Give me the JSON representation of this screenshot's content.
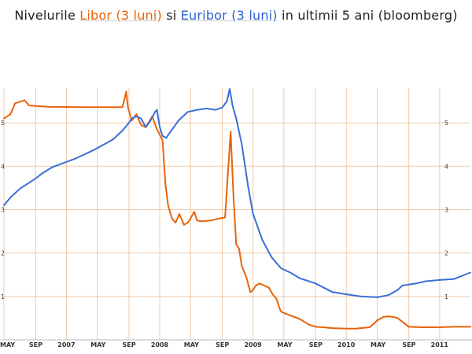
{
  "title": {
    "prefix": "Nivelurile ",
    "series1": "Libor (3 luni)",
    "middle": " si ",
    "series2": "Euribor (3 luni)",
    "suffix": " in ultimii 5 ani (bloomberg)"
  },
  "colors": {
    "libor": "#e8630a",
    "euribor": "#3a6fd8",
    "grid": "#efc9a9",
    "axis": "#bbbbbb"
  },
  "chart_data": {
    "type": "line",
    "title": "Nivelurile Libor (3 luni) si Euribor (3 luni) in ultimii 5 ani (bloomberg)",
    "xlabel": "",
    "ylabel": "",
    "xlim": [
      2006.33,
      2011.33
    ],
    "ylim": [
      0,
      5.8
    ],
    "y_ticks": [
      "1",
      "2",
      "3",
      "4",
      "5"
    ],
    "x_ticks": [
      {
        "label": "MAY",
        "x": 2006.33
      },
      {
        "label": "SEP",
        "x": 2006.67
      },
      {
        "label": "2007",
        "x": 2007.0
      },
      {
        "label": "MAY",
        "x": 2007.33
      },
      {
        "label": "SEP",
        "x": 2007.67
      },
      {
        "label": "2008",
        "x": 2008.0
      },
      {
        "label": "MAY",
        "x": 2008.33
      },
      {
        "label": "SEP",
        "x": 2008.67
      },
      {
        "label": "2009",
        "x": 2009.0
      },
      {
        "label": "MAY",
        "x": 2009.33
      },
      {
        "label": "SEP",
        "x": 2009.67
      },
      {
        "label": "2010",
        "x": 2010.0
      },
      {
        "label": "MAY",
        "x": 2010.33
      },
      {
        "label": "SEP",
        "x": 2010.67
      },
      {
        "label": "2011",
        "x": 2011.0
      }
    ],
    "grid": true,
    "series": [
      {
        "name": "Libor (3 luni)",
        "x": [
          2006.33,
          2006.4,
          2006.45,
          2006.55,
          2006.6,
          2006.8,
          2007.2,
          2007.6,
          2007.62,
          2007.64,
          2007.66,
          2007.7,
          2007.75,
          2007.8,
          2007.85,
          2007.92,
          2007.97,
          2008.03,
          2008.06,
          2008.09,
          2008.13,
          2008.17,
          2008.21,
          2008.26,
          2008.3,
          2008.33,
          2008.37,
          2008.4,
          2008.45,
          2008.55,
          2008.65,
          2008.7,
          2008.73,
          2008.76,
          2008.79,
          2008.82,
          2008.85,
          2008.88,
          2008.93,
          2008.97,
          2009.0,
          2009.03,
          2009.07,
          2009.12,
          2009.17,
          2009.21,
          2009.25,
          2009.28,
          2009.3,
          2009.33,
          2009.4,
          2009.5,
          2009.6,
          2009.67,
          2009.75,
          2009.85,
          2010.0,
          2010.1,
          2010.25,
          2010.3,
          2010.33,
          2010.4,
          2010.45,
          2010.5,
          2010.55,
          2010.58,
          2010.67,
          2010.8,
          2011.0,
          2011.15,
          2011.33
        ],
        "values": [
          5.1,
          5.2,
          5.45,
          5.52,
          5.4,
          5.37,
          5.36,
          5.36,
          5.52,
          5.72,
          5.35,
          5.05,
          5.2,
          4.95,
          4.9,
          5.15,
          4.85,
          4.6,
          3.6,
          3.1,
          2.8,
          2.7,
          2.9,
          2.65,
          2.7,
          2.8,
          2.95,
          2.75,
          2.73,
          2.75,
          2.8,
          2.82,
          3.8,
          4.8,
          3.3,
          2.2,
          2.1,
          1.7,
          1.43,
          1.1,
          1.15,
          1.25,
          1.3,
          1.25,
          1.2,
          1.05,
          0.95,
          0.75,
          0.65,
          0.62,
          0.56,
          0.48,
          0.35,
          0.3,
          0.29,
          0.27,
          0.26,
          0.26,
          0.29,
          0.38,
          0.45,
          0.53,
          0.54,
          0.53,
          0.5,
          0.45,
          0.3,
          0.29,
          0.29,
          0.3,
          0.3
        ]
      },
      {
        "name": "Euribor (3 luni)",
        "x": [
          2006.33,
          2006.4,
          2006.5,
          2006.6,
          2006.67,
          2006.75,
          2006.85,
          2007.0,
          2007.1,
          2007.2,
          2007.3,
          2007.4,
          2007.5,
          2007.55,
          2007.6,
          2007.65,
          2007.67,
          2007.7,
          2007.75,
          2007.8,
          2007.85,
          2007.9,
          2007.95,
          2007.97,
          2008.0,
          2008.03,
          2008.07,
          2008.1,
          2008.15,
          2008.2,
          2008.3,
          2008.4,
          2008.5,
          2008.6,
          2008.67,
          2008.72,
          2008.75,
          2008.78,
          2008.82,
          2008.88,
          2008.95,
          2009.0,
          2009.05,
          2009.1,
          2009.2,
          2009.3,
          2009.4,
          2009.5,
          2009.67,
          2009.85,
          2010.0,
          2010.15,
          2010.33,
          2010.45,
          2010.55,
          2010.6,
          2010.75,
          2010.85,
          2011.0,
          2011.15,
          2011.33
        ],
        "values": [
          3.1,
          3.28,
          3.48,
          3.62,
          3.72,
          3.85,
          3.98,
          4.1,
          4.18,
          4.28,
          4.38,
          4.5,
          4.62,
          4.72,
          4.82,
          4.95,
          5.0,
          5.1,
          5.15,
          5.1,
          4.9,
          5.05,
          5.25,
          5.3,
          4.9,
          4.7,
          4.65,
          4.75,
          4.9,
          5.05,
          5.25,
          5.3,
          5.33,
          5.3,
          5.35,
          5.5,
          5.78,
          5.4,
          5.1,
          4.5,
          3.5,
          2.9,
          2.6,
          2.3,
          1.9,
          1.65,
          1.55,
          1.42,
          1.3,
          1.1,
          1.05,
          1.0,
          0.98,
          1.03,
          1.15,
          1.25,
          1.3,
          1.35,
          1.38,
          1.4,
          1.55
        ]
      }
    ]
  }
}
